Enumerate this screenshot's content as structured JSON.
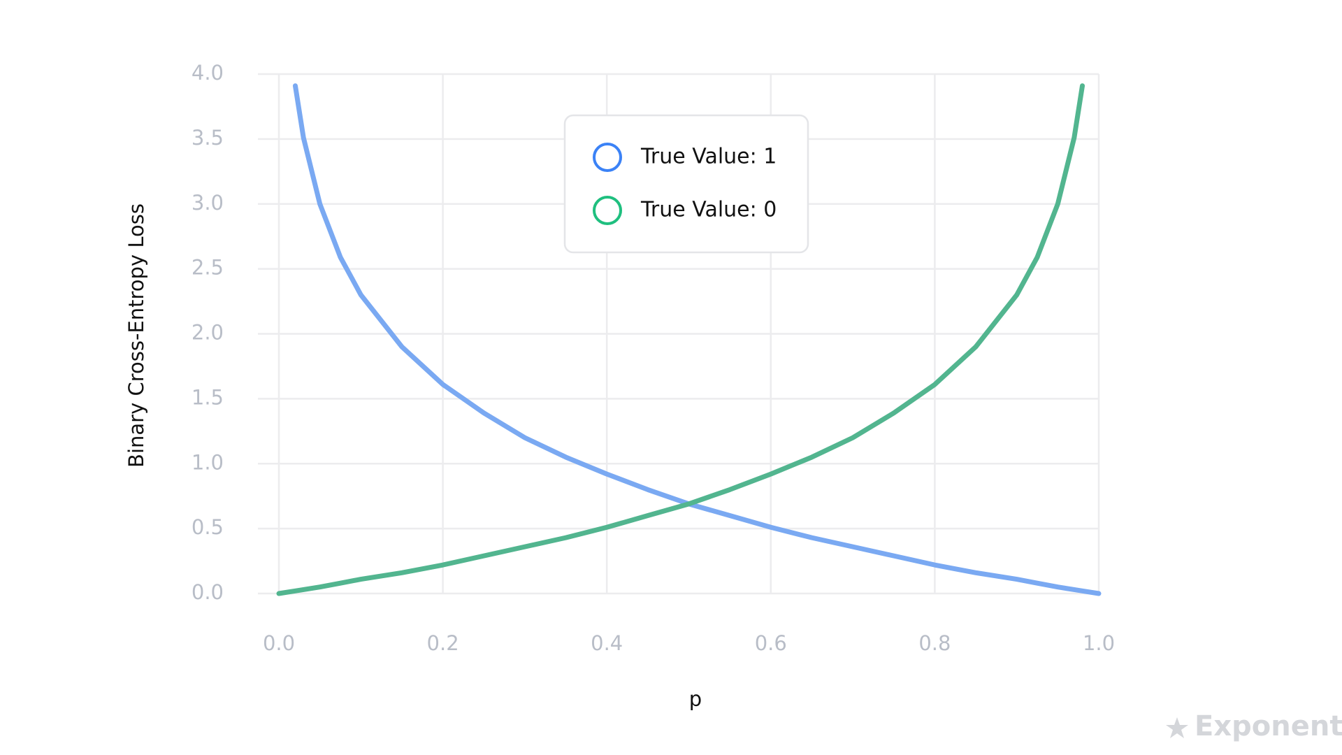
{
  "chart_data": {
    "type": "line",
    "x_label": "p",
    "y_label": "Binary Cross-Entropy Loss",
    "x": [
      0,
      0.02,
      0.03,
      0.05,
      0.075,
      0.1,
      0.15,
      0.2,
      0.25,
      0.3,
      0.35,
      0.4,
      0.45,
      0.5,
      0.55,
      0.6,
      0.65,
      0.7,
      0.75,
      0.8,
      0.85,
      0.9,
      0.925,
      0.95,
      0.97,
      0.98,
      1.0
    ],
    "series": [
      {
        "name": "True Value: 1",
        "color": "#7aa9f2",
        "marker_color": "#3b82f6",
        "values": [
          null,
          3.91,
          3.51,
          3.0,
          2.59,
          2.3,
          1.9,
          1.61,
          1.39,
          1.2,
          1.05,
          0.92,
          0.8,
          0.69,
          0.6,
          0.51,
          0.43,
          0.36,
          0.29,
          0.22,
          0.16,
          0.11,
          0.08,
          0.05,
          0.03,
          0.02,
          0.0
        ]
      },
      {
        "name": "True Value: 0",
        "color": "#52b58f",
        "marker_color": "#1fbf7f",
        "values": [
          0.0,
          0.02,
          0.03,
          0.05,
          0.08,
          0.11,
          0.16,
          0.22,
          0.29,
          0.36,
          0.43,
          0.51,
          0.6,
          0.69,
          0.8,
          0.92,
          1.05,
          1.2,
          1.39,
          1.61,
          1.9,
          2.3,
          2.59,
          3.0,
          3.51,
          3.91,
          null
        ]
      }
    ],
    "xlim": [
      0,
      1
    ],
    "ylim": [
      0,
      4
    ],
    "xticks": [
      {
        "value": 0,
        "label": "0.0"
      },
      {
        "value": 0.2,
        "label": "0.2"
      },
      {
        "value": 0.4,
        "label": "0.4"
      },
      {
        "value": 0.6,
        "label": "0.6"
      },
      {
        "value": 0.8,
        "label": "0.8"
      },
      {
        "value": 1,
        "label": "1.0"
      }
    ],
    "yticks": [
      {
        "value": 0,
        "label": "0.0"
      },
      {
        "value": 0.5,
        "label": "0.5"
      },
      {
        "value": 1,
        "label": "1.0"
      },
      {
        "value": 1.5,
        "label": "1.5"
      },
      {
        "value": 2,
        "label": "2.0"
      },
      {
        "value": 2.5,
        "label": "2.5"
      },
      {
        "value": 3,
        "label": "3.0"
      },
      {
        "value": 3.5,
        "label": "3.5"
      },
      {
        "value": 4,
        "label": "4.0"
      }
    ],
    "grid": true,
    "watermark": "Exponent"
  }
}
